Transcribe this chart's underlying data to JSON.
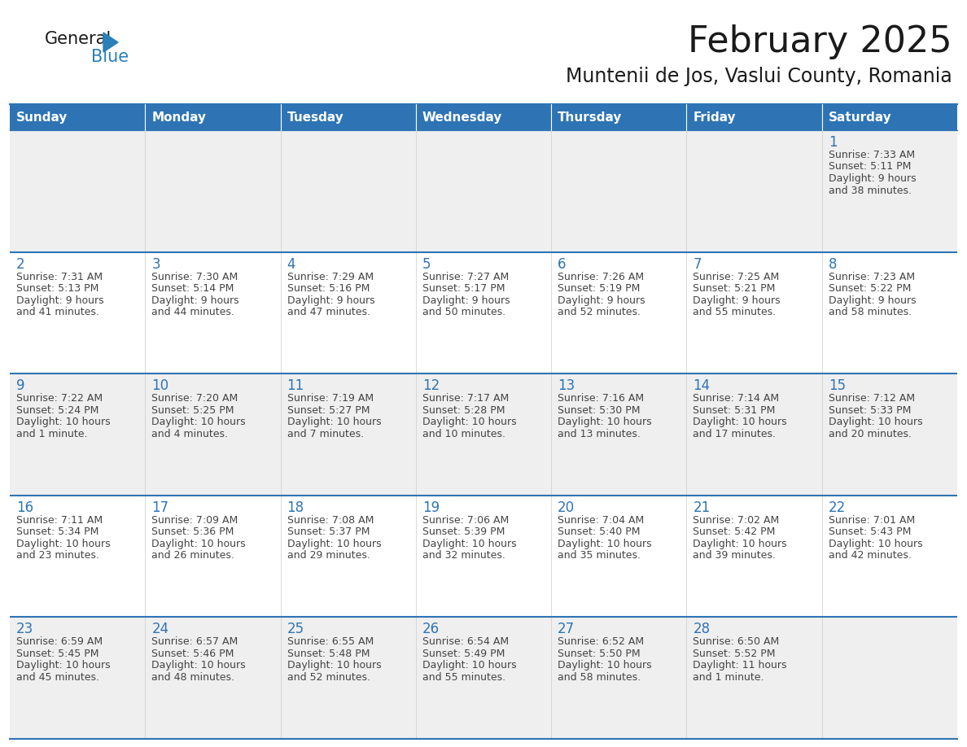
{
  "title": "February 2025",
  "subtitle": "Muntenii de Jos, Vaslui County, Romania",
  "header_bg": "#2e74b5",
  "header_text_color": "#ffffff",
  "row_bg_odd": "#efefef",
  "row_bg_even": "#ffffff",
  "day_number_color": "#2e74b5",
  "text_color": "#444444",
  "border_color": "#2e74b5",
  "days_of_week": [
    "Sunday",
    "Monday",
    "Tuesday",
    "Wednesday",
    "Thursday",
    "Friday",
    "Saturday"
  ],
  "weeks": [
    [
      {
        "day": null,
        "sunrise": null,
        "sunset": null,
        "daylight": null
      },
      {
        "day": null,
        "sunrise": null,
        "sunset": null,
        "daylight": null
      },
      {
        "day": null,
        "sunrise": null,
        "sunset": null,
        "daylight": null
      },
      {
        "day": null,
        "sunrise": null,
        "sunset": null,
        "daylight": null
      },
      {
        "day": null,
        "sunrise": null,
        "sunset": null,
        "daylight": null
      },
      {
        "day": null,
        "sunrise": null,
        "sunset": null,
        "daylight": null
      },
      {
        "day": 1,
        "sunrise": "7:33 AM",
        "sunset": "5:11 PM",
        "daylight": "9 hours\nand 38 minutes."
      }
    ],
    [
      {
        "day": 2,
        "sunrise": "7:31 AM",
        "sunset": "5:13 PM",
        "daylight": "9 hours\nand 41 minutes."
      },
      {
        "day": 3,
        "sunrise": "7:30 AM",
        "sunset": "5:14 PM",
        "daylight": "9 hours\nand 44 minutes."
      },
      {
        "day": 4,
        "sunrise": "7:29 AM",
        "sunset": "5:16 PM",
        "daylight": "9 hours\nand 47 minutes."
      },
      {
        "day": 5,
        "sunrise": "7:27 AM",
        "sunset": "5:17 PM",
        "daylight": "9 hours\nand 50 minutes."
      },
      {
        "day": 6,
        "sunrise": "7:26 AM",
        "sunset": "5:19 PM",
        "daylight": "9 hours\nand 52 minutes."
      },
      {
        "day": 7,
        "sunrise": "7:25 AM",
        "sunset": "5:21 PM",
        "daylight": "9 hours\nand 55 minutes."
      },
      {
        "day": 8,
        "sunrise": "7:23 AM",
        "sunset": "5:22 PM",
        "daylight": "9 hours\nand 58 minutes."
      }
    ],
    [
      {
        "day": 9,
        "sunrise": "7:22 AM",
        "sunset": "5:24 PM",
        "daylight": "10 hours\nand 1 minute."
      },
      {
        "day": 10,
        "sunrise": "7:20 AM",
        "sunset": "5:25 PM",
        "daylight": "10 hours\nand 4 minutes."
      },
      {
        "day": 11,
        "sunrise": "7:19 AM",
        "sunset": "5:27 PM",
        "daylight": "10 hours\nand 7 minutes."
      },
      {
        "day": 12,
        "sunrise": "7:17 AM",
        "sunset": "5:28 PM",
        "daylight": "10 hours\nand 10 minutes."
      },
      {
        "day": 13,
        "sunrise": "7:16 AM",
        "sunset": "5:30 PM",
        "daylight": "10 hours\nand 13 minutes."
      },
      {
        "day": 14,
        "sunrise": "7:14 AM",
        "sunset": "5:31 PM",
        "daylight": "10 hours\nand 17 minutes."
      },
      {
        "day": 15,
        "sunrise": "7:12 AM",
        "sunset": "5:33 PM",
        "daylight": "10 hours\nand 20 minutes."
      }
    ],
    [
      {
        "day": 16,
        "sunrise": "7:11 AM",
        "sunset": "5:34 PM",
        "daylight": "10 hours\nand 23 minutes."
      },
      {
        "day": 17,
        "sunrise": "7:09 AM",
        "sunset": "5:36 PM",
        "daylight": "10 hours\nand 26 minutes."
      },
      {
        "day": 18,
        "sunrise": "7:08 AM",
        "sunset": "5:37 PM",
        "daylight": "10 hours\nand 29 minutes."
      },
      {
        "day": 19,
        "sunrise": "7:06 AM",
        "sunset": "5:39 PM",
        "daylight": "10 hours\nand 32 minutes."
      },
      {
        "day": 20,
        "sunrise": "7:04 AM",
        "sunset": "5:40 PM",
        "daylight": "10 hours\nand 35 minutes."
      },
      {
        "day": 21,
        "sunrise": "7:02 AM",
        "sunset": "5:42 PM",
        "daylight": "10 hours\nand 39 minutes."
      },
      {
        "day": 22,
        "sunrise": "7:01 AM",
        "sunset": "5:43 PM",
        "daylight": "10 hours\nand 42 minutes."
      }
    ],
    [
      {
        "day": 23,
        "sunrise": "6:59 AM",
        "sunset": "5:45 PM",
        "daylight": "10 hours\nand 45 minutes."
      },
      {
        "day": 24,
        "sunrise": "6:57 AM",
        "sunset": "5:46 PM",
        "daylight": "10 hours\nand 48 minutes."
      },
      {
        "day": 25,
        "sunrise": "6:55 AM",
        "sunset": "5:48 PM",
        "daylight": "10 hours\nand 52 minutes."
      },
      {
        "day": 26,
        "sunrise": "6:54 AM",
        "sunset": "5:49 PM",
        "daylight": "10 hours\nand 55 minutes."
      },
      {
        "day": 27,
        "sunrise": "6:52 AM",
        "sunset": "5:50 PM",
        "daylight": "10 hours\nand 58 minutes."
      },
      {
        "day": 28,
        "sunrise": "6:50 AM",
        "sunset": "5:52 PM",
        "daylight": "11 hours\nand 1 minute."
      },
      {
        "day": null,
        "sunrise": null,
        "sunset": null,
        "daylight": null
      }
    ]
  ],
  "logo_general_color": "#1a1a1a",
  "logo_blue_color": "#2980b9",
  "logo_triangle_color": "#2980b9",
  "title_fontsize": 32,
  "subtitle_fontsize": 17,
  "header_fontsize": 11,
  "day_num_fontsize": 12,
  "cell_text_fontsize": 9
}
